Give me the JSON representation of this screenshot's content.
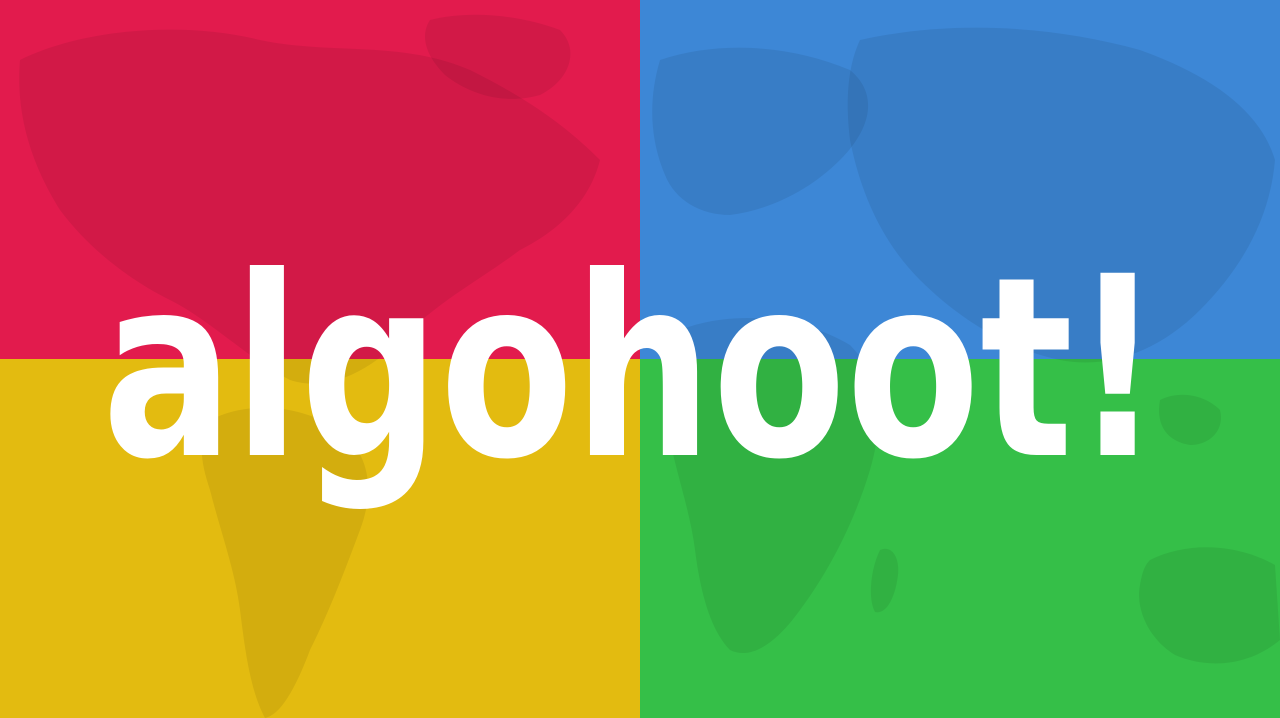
{
  "logo": {
    "text": "algohoot!"
  },
  "colors": {
    "red": "#e21b4d",
    "blue": "#3d87d6",
    "yellow": "#e3bb10",
    "green": "#35bf48",
    "logo_text": "#ffffff"
  },
  "background": {
    "icon": "world-map-icon"
  }
}
